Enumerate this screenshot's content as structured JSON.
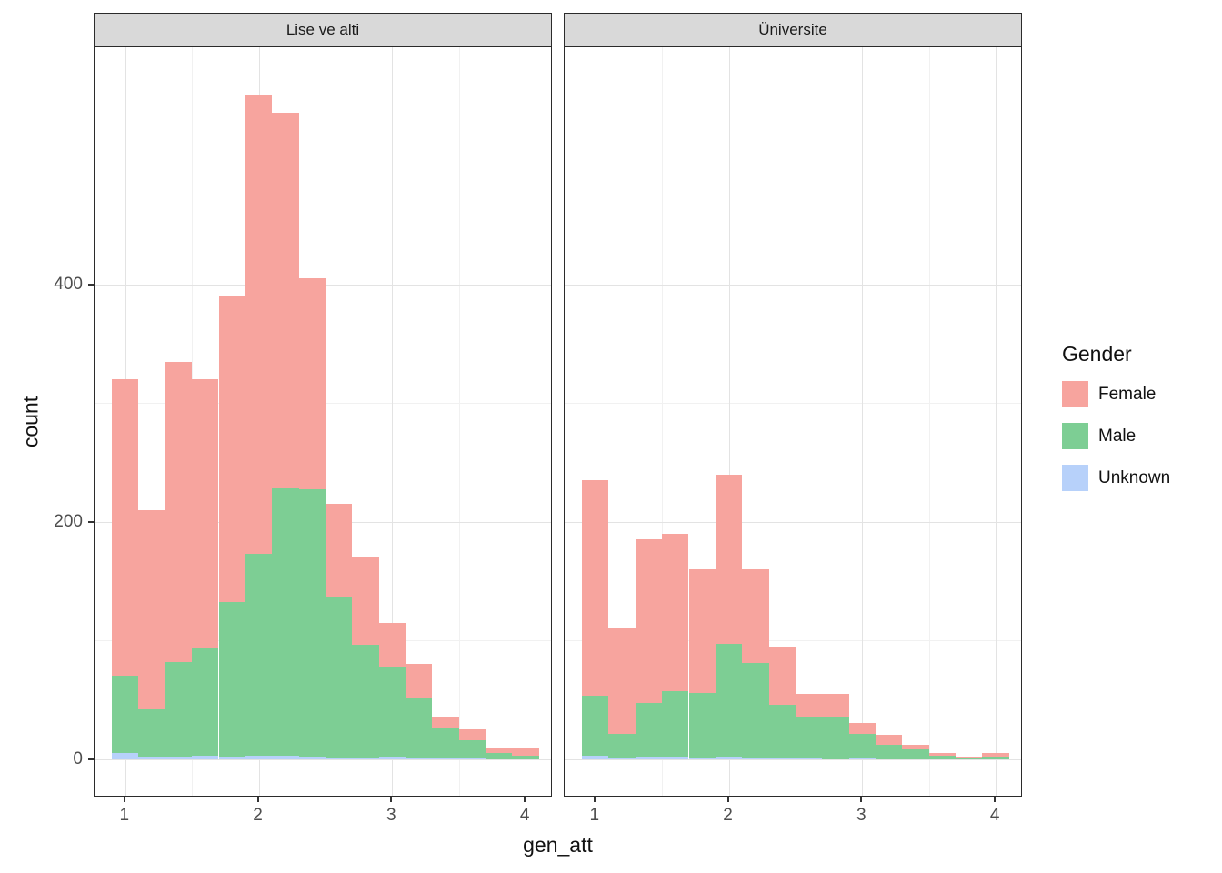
{
  "chart_data": {
    "type": "bar",
    "subtype": "stacked-histogram-faceted",
    "title": "",
    "xlabel": "gen_att",
    "ylabel": "count",
    "x_domain": [
      0.77,
      4.19
    ],
    "y_domain": [
      -31,
      600
    ],
    "x_ticks": [
      1,
      2,
      3,
      4
    ],
    "y_ticks": [
      0,
      200,
      400
    ],
    "x_minor": [
      1.5,
      2.5,
      3.5
    ],
    "y_minor": [
      100,
      300,
      500
    ],
    "binwidth": 0.2,
    "bin_start": 0.9,
    "grid": true,
    "legend_position": "right",
    "stack_order_bottom_to_top": [
      "Unknown",
      "Male",
      "Female"
    ],
    "facets": [
      {
        "label": "Lise ve alti",
        "series": [
          {
            "name": "Female",
            "values": [
              250,
              168,
              253,
              227,
              258,
              387,
              317,
              178,
              79,
              74,
              38,
              29,
              9,
              9,
              5,
              7
            ]
          },
          {
            "name": "Male",
            "values": [
              65,
              40,
              80,
              90,
              130,
              170,
              225,
              225,
              135,
              95,
              75,
              50,
              25,
              15,
              5,
              3
            ]
          },
          {
            "name": "Unknown",
            "values": [
              5,
              2,
              2,
              3,
              2,
              3,
              3,
              2,
              1,
              1,
              2,
              1,
              1,
              1,
              0,
              0
            ]
          }
        ]
      },
      {
        "label": "Üniversite",
        "series": [
          {
            "name": "Female",
            "values": [
              182,
              89,
              138,
              133,
              104,
              143,
              79,
              49,
              19,
              20,
              9,
              8,
              4,
              2,
              1,
              3
            ]
          },
          {
            "name": "Male",
            "values": [
              50,
              20,
              45,
              55,
              55,
              95,
              80,
              45,
              35,
              35,
              20,
              12,
              8,
              3,
              1,
              2
            ]
          },
          {
            "name": "Unknown",
            "values": [
              3,
              1,
              2,
              2,
              1,
              2,
              1,
              1,
              1,
              0,
              1,
              0,
              0,
              0,
              0,
              0
            ]
          }
        ]
      }
    ],
    "legend": {
      "title": "Gender",
      "entries": [
        {
          "label": "Female",
          "color": "#F7A49E"
        },
        {
          "label": "Male",
          "color": "#7DCE94"
        },
        {
          "label": "Unknown",
          "color": "#B7D1FA"
        }
      ]
    },
    "colors": {
      "strip_background": "#D9D9D9",
      "panel_border": "#2b2b2b",
      "grid_major": "#E3E3E3",
      "grid_minor": "#F1F1F1",
      "tick_text": "#4D4D4D"
    }
  }
}
